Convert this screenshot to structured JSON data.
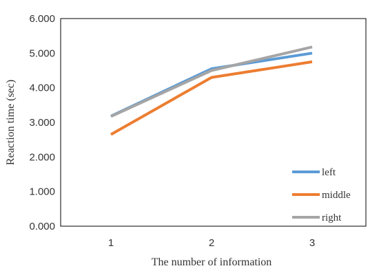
{
  "chart_data": {
    "type": "line",
    "x": [
      1,
      2,
      3
    ],
    "x_tick_labels": [
      "1",
      "2",
      "3"
    ],
    "y_tick_labels": [
      "0.000",
      "1.000",
      "2.000",
      "3.000",
      "4.000",
      "5.000",
      "6.000"
    ],
    "xlabel": "The number of information",
    "ylabel": "Reaction time (sec)",
    "ylim": [
      0,
      6
    ],
    "grid": false,
    "legend_position": "bottom-right",
    "series": [
      {
        "name": "left",
        "color": "#5B9BD5",
        "values": [
          3.18,
          4.55,
          5.0
        ]
      },
      {
        "name": "middle",
        "color": "#ED7D31",
        "values": [
          2.65,
          4.3,
          4.75
        ]
      },
      {
        "name": "right",
        "color": "#A5A5A5",
        "values": [
          3.17,
          4.5,
          5.18
        ]
      }
    ]
  }
}
